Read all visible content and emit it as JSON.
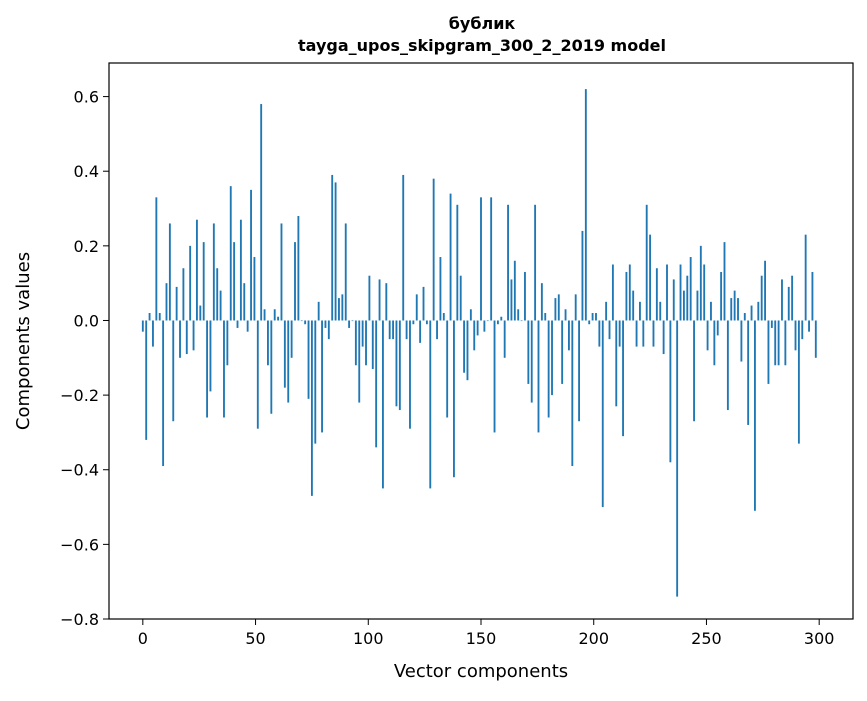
{
  "chart_data": {
    "type": "bar",
    "title": "бублик",
    "subtitle": "tayga_upos_skipgram_300_2_2019 model",
    "xlabel": "Vector components",
    "ylabel": "Components values",
    "xlim": [
      -15,
      315
    ],
    "ylim": [
      -0.8,
      0.69
    ],
    "xticks": [
      0,
      50,
      100,
      150,
      200,
      250,
      300
    ],
    "xtick_labels": [
      "0",
      "50",
      "100",
      "150",
      "200",
      "250",
      "300"
    ],
    "yticks": [
      0.6,
      0.4,
      0.2,
      0.0,
      -0.2,
      -0.4,
      -0.6,
      -0.8
    ],
    "ytick_labels": [
      "0.6",
      "0.4",
      "0.2",
      "0.0",
      "−0.2",
      "−0.4",
      "−0.6",
      "−0.8"
    ],
    "grid": false,
    "bar_color": "#1f77b4",
    "values": [
      -0.03,
      -0.32,
      0.02,
      -0.07,
      0.33,
      0.02,
      -0.39,
      0.1,
      0.26,
      -0.27,
      0.09,
      -0.1,
      0.14,
      -0.09,
      0.2,
      -0.08,
      0.27,
      0.04,
      0.21,
      -0.26,
      -0.19,
      0.26,
      0.14,
      0.08,
      -0.26,
      -0.12,
      0.36,
      0.21,
      -0.02,
      0.27,
      0.1,
      -0.03,
      0.35,
      0.17,
      -0.29,
      0.58,
      0.03,
      -0.12,
      -0.25,
      0.03,
      0.01,
      0.26,
      -0.18,
      -0.22,
      -0.1,
      0.21,
      0.28,
      0.0,
      -0.01,
      -0.21,
      -0.47,
      -0.33,
      0.05,
      -0.3,
      -0.02,
      -0.05,
      0.39,
      0.37,
      0.06,
      0.07,
      0.26,
      -0.02,
      0.0,
      -0.12,
      -0.22,
      -0.07,
      -0.12,
      0.12,
      -0.13,
      -0.34,
      0.11,
      -0.45,
      0.1,
      -0.05,
      -0.05,
      -0.23,
      -0.24,
      0.39,
      -0.05,
      -0.29,
      -0.01,
      0.07,
      -0.06,
      0.09,
      -0.01,
      -0.45,
      0.38,
      -0.05,
      0.17,
      0.02,
      -0.26,
      0.34,
      -0.42,
      0.31,
      0.12,
      -0.14,
      -0.16,
      0.03,
      -0.08,
      -0.04,
      0.33,
      -0.03,
      0.0,
      0.33,
      -0.3,
      -0.01,
      0.01,
      -0.1,
      0.31,
      0.11,
      0.16,
      0.03,
      0.0,
      0.13,
      -0.17,
      -0.22,
      0.31,
      -0.3,
      0.1,
      0.02,
      -0.26,
      -0.2,
      0.06,
      0.07,
      -0.17,
      0.03,
      -0.08,
      -0.39,
      0.07,
      -0.27,
      0.24,
      0.62,
      -0.01,
      0.02,
      0.02,
      -0.07,
      -0.5,
      0.05,
      -0.05,
      0.15,
      -0.23,
      -0.07,
      -0.31,
      0.13,
      0.15,
      0.08,
      -0.07,
      0.05,
      -0.07,
      0.31,
      0.23,
      -0.07,
      0.14,
      0.05,
      -0.09,
      0.15,
      -0.38,
      0.11,
      -0.74,
      0.15,
      0.08,
      0.12,
      0.17,
      -0.27,
      0.08,
      0.2,
      0.15,
      -0.08,
      0.05,
      -0.12,
      -0.04,
      0.13,
      0.21,
      -0.24,
      0.06,
      0.08,
      0.06,
      -0.11,
      0.02,
      -0.28,
      0.04,
      -0.51,
      0.05,
      0.12,
      0.16,
      -0.17,
      -0.02,
      -0.12,
      -0.12,
      0.11,
      -0.12,
      0.09,
      0.12,
      -0.08,
      -0.33,
      -0.05,
      0.23,
      -0.03,
      0.13,
      -0.1
    ]
  }
}
